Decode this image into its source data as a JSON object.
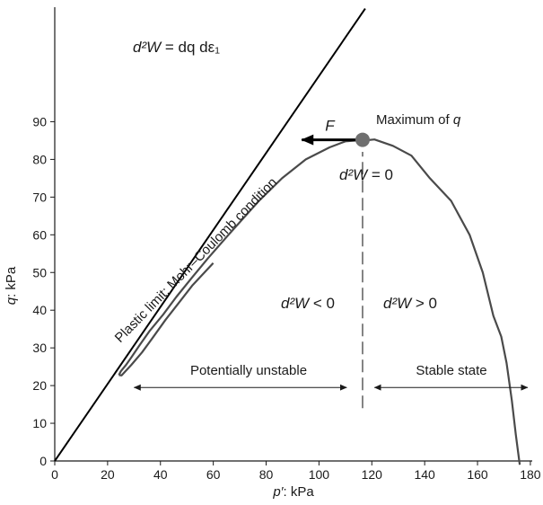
{
  "chart_data": {
    "type": "line",
    "xlabel_var": "p′",
    "xlabel_unit": ": kPa",
    "ylabel_var": "q",
    "ylabel_unit": ": kPa",
    "xlim": [
      0,
      180
    ],
    "ylim": [
      0,
      100
    ],
    "x_ticks": [
      0,
      20,
      40,
      60,
      80,
      100,
      120,
      140,
      160,
      180
    ],
    "y_ticks": [
      0,
      10,
      20,
      30,
      40,
      50,
      60,
      70,
      80,
      90
    ],
    "grid": false,
    "series": [
      {
        "kind": "stress-path",
        "color": "#4a4a4a",
        "points": [
          [
            24.3,
            22.8
          ],
          [
            25.0,
            23.8
          ],
          [
            27.0,
            25.5
          ],
          [
            29.0,
            27.5
          ],
          [
            32.0,
            30.6
          ],
          [
            36.0,
            34.6
          ],
          [
            41.0,
            38.8
          ],
          [
            46.0,
            43.5
          ],
          [
            52.0,
            48.7
          ],
          [
            58.0,
            53.8
          ],
          [
            66.0,
            60.2
          ],
          [
            77.0,
            68.8
          ],
          [
            86.0,
            75.0
          ],
          [
            95.0,
            80.0
          ],
          [
            104.0,
            83.2
          ],
          [
            110.0,
            84.8
          ],
          [
            114.0,
            85.0
          ],
          [
            117.0,
            85.0
          ],
          [
            121.0,
            85.3
          ],
          [
            128.0,
            83.6
          ],
          [
            135.0,
            81.0
          ],
          [
            142.0,
            75.0
          ],
          [
            150.0,
            69.0
          ],
          [
            157.0,
            60.0
          ],
          [
            162.0,
            50.0
          ],
          [
            166.0,
            38.5
          ],
          [
            169.0,
            33.0
          ],
          [
            171.0,
            26.0
          ],
          [
            173.0,
            16.0
          ],
          [
            174.5,
            7.0
          ],
          [
            176.0,
            -1.0
          ]
        ],
        "lower_branch": [
          [
            24.3,
            22.8
          ],
          [
            25.3,
            22.7
          ],
          [
            29.0,
            25.5
          ],
          [
            33.0,
            28.8
          ],
          [
            37.0,
            32.6
          ],
          [
            42.0,
            37.5
          ],
          [
            47.0,
            42.0
          ],
          [
            52.0,
            46.5
          ],
          [
            60.0,
            52.5
          ]
        ]
      },
      {
        "kind": "failure-line",
        "color": "#000000",
        "points": [
          [
            0,
            0
          ],
          [
            117.5,
            120.0
          ]
        ]
      }
    ],
    "marker": {
      "x": 116.5,
      "y": 85.2,
      "color": "#6f6f6f"
    },
    "force_arrow": {
      "x_from": 116.5,
      "x_to": 93.5,
      "y": 85.2,
      "label": "F"
    },
    "divider": {
      "x": 116.5,
      "y_from": 14.0,
      "y_to": 82.0
    },
    "annotations": {
      "top_eq": {
        "lhs": "d²W",
        "rhs": " = dq dε₁"
      },
      "maximum_of_q": {
        "prefix": "Maximum of ",
        "var": "q"
      },
      "zero_eq": {
        "lhs": "d²W",
        "rhs": " = 0"
      },
      "neg_eq": {
        "lhs": "d²W",
        "rhs": " < 0"
      },
      "pos_eq": {
        "lhs": "d²W",
        "rhs": " > 0"
      },
      "plastic_limit": "Plastic limit: Mohr–Coulomb condition",
      "potentially_unstable": "Potentially unstable",
      "stable_state": "Stable state"
    },
    "ranges": {
      "unstable": {
        "x_from": 30.0,
        "x_to": 110.5,
        "y": 19.5
      },
      "stable": {
        "x_from": 121.0,
        "x_to": 179.0,
        "y": 19.5
      }
    }
  }
}
